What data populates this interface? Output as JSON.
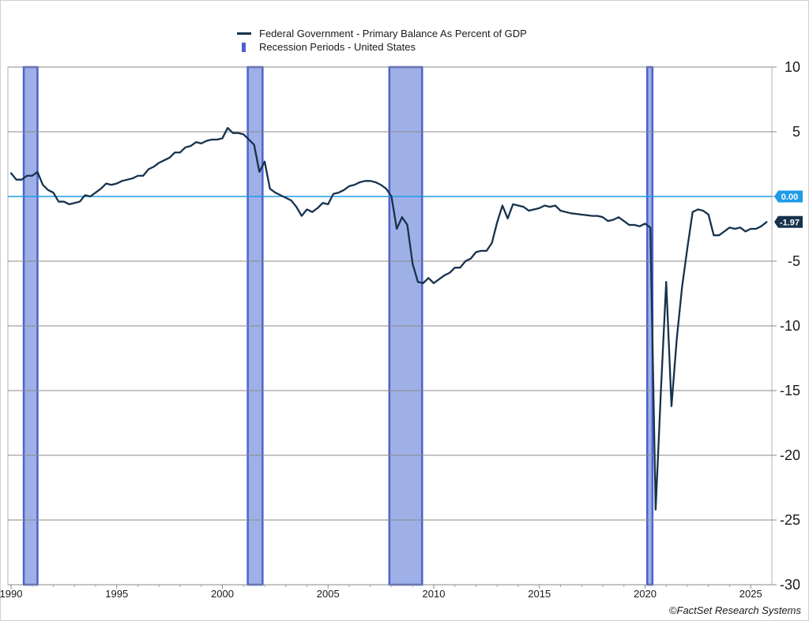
{
  "chart_data": {
    "type": "line",
    "title": "",
    "legend": [
      {
        "name": "Federal Government - Primary Balance As Percent of GDP",
        "kind": "line",
        "color": "#17324d"
      },
      {
        "name": "Recession Periods - United States",
        "kind": "bar",
        "color": "#4d62cf"
      }
    ],
    "ylim": [
      -30,
      10
    ],
    "xlim": [
      1989.85,
      2026.0
    ],
    "y_ticks": [
      "10",
      "5",
      "0",
      "-5",
      "-10",
      "-15",
      "-20",
      "-25",
      "-30"
    ],
    "y_tick_values": [
      10,
      5,
      0,
      -5,
      -10,
      -15,
      -20,
      -25,
      -30
    ],
    "x_ticks": [
      "1990",
      "1995",
      "2000",
      "2005",
      "2010",
      "2015",
      "2020",
      "2025"
    ],
    "x_tick_values": [
      1990,
      1995,
      2000,
      2005,
      2010,
      2015,
      2020,
      2025
    ],
    "grid": true,
    "zero_line": {
      "value": 0,
      "label": "0.00",
      "color": "#1f9be8"
    },
    "last_value": {
      "value": -1.97,
      "label": "-1.97",
      "color": "#17324d"
    },
    "recessions": [
      {
        "start": 1990.6,
        "end": 1991.25
      },
      {
        "start": 2001.2,
        "end": 2001.9
      },
      {
        "start": 2007.9,
        "end": 2009.45
      },
      {
        "start": 2020.1,
        "end": 2020.35
      }
    ],
    "series": [
      {
        "name": "Federal Government - Primary Balance As Percent of GDP",
        "x": [
          1990.0,
          1990.25,
          1990.5,
          1990.75,
          1991.0,
          1991.25,
          1991.5,
          1991.75,
          1992.0,
          1992.25,
          1992.5,
          1992.75,
          1993.0,
          1993.25,
          1993.5,
          1993.75,
          1994.0,
          1994.25,
          1994.5,
          1994.75,
          1995.0,
          1995.25,
          1995.5,
          1995.75,
          1996.0,
          1996.25,
          1996.5,
          1996.75,
          1997.0,
          1997.25,
          1997.5,
          1997.75,
          1998.0,
          1998.25,
          1998.5,
          1998.75,
          1999.0,
          1999.25,
          1999.5,
          1999.75,
          2000.0,
          2000.25,
          2000.5,
          2000.75,
          2001.0,
          2001.25,
          2001.5,
          2001.75,
          2002.0,
          2002.25,
          2002.5,
          2002.75,
          2003.0,
          2003.25,
          2003.5,
          2003.75,
          2004.0,
          2004.25,
          2004.5,
          2004.75,
          2005.0,
          2005.25,
          2005.5,
          2005.75,
          2006.0,
          2006.25,
          2006.5,
          2006.75,
          2007.0,
          2007.25,
          2007.5,
          2007.75,
          2008.0,
          2008.25,
          2008.5,
          2008.75,
          2009.0,
          2009.25,
          2009.5,
          2009.75,
          2010.0,
          2010.25,
          2010.5,
          2010.75,
          2011.0,
          2011.25,
          2011.5,
          2011.75,
          2012.0,
          2012.25,
          2012.5,
          2012.75,
          2013.0,
          2013.25,
          2013.5,
          2013.75,
          2014.0,
          2014.25,
          2014.5,
          2014.75,
          2015.0,
          2015.25,
          2015.5,
          2015.75,
          2016.0,
          2016.25,
          2016.5,
          2016.75,
          2017.0,
          2017.25,
          2017.5,
          2017.75,
          2018.0,
          2018.25,
          2018.5,
          2018.75,
          2019.0,
          2019.25,
          2019.5,
          2019.75,
          2020.0,
          2020.25,
          2020.5,
          2020.75,
          2021.0,
          2021.25,
          2021.5,
          2021.75,
          2022.0,
          2022.25,
          2022.5,
          2022.75,
          2023.0,
          2023.25,
          2023.5,
          2023.75,
          2024.0,
          2024.25,
          2024.5,
          2024.75,
          2025.0,
          2025.25,
          2025.5,
          2025.75
        ],
        "values": [
          1.8,
          1.3,
          1.3,
          1.6,
          1.6,
          1.9,
          0.9,
          0.5,
          0.3,
          -0.4,
          -0.4,
          -0.6,
          -0.5,
          -0.4,
          0.1,
          0.0,
          0.3,
          0.6,
          1.0,
          0.9,
          1.0,
          1.2,
          1.3,
          1.4,
          1.6,
          1.6,
          2.1,
          2.3,
          2.6,
          2.8,
          3.0,
          3.4,
          3.4,
          3.8,
          3.9,
          4.2,
          4.1,
          4.3,
          4.4,
          4.4,
          4.5,
          5.3,
          4.9,
          4.9,
          4.8,
          4.4,
          4.0,
          1.9,
          2.7,
          0.6,
          0.3,
          0.1,
          -0.1,
          -0.3,
          -0.8,
          -1.5,
          -1.0,
          -1.2,
          -0.9,
          -0.5,
          -0.6,
          0.2,
          0.3,
          0.5,
          0.8,
          0.9,
          1.1,
          1.2,
          1.2,
          1.1,
          0.9,
          0.6,
          0.0,
          -2.5,
          -1.6,
          -2.2,
          -5.2,
          -6.6,
          -6.7,
          -6.3,
          -6.7,
          -6.4,
          -6.1,
          -5.9,
          -5.5,
          -5.5,
          -5.0,
          -4.8,
          -4.3,
          -4.2,
          -4.2,
          -3.6,
          -2.0,
          -0.7,
          -1.7,
          -0.6,
          -0.7,
          -0.8,
          -1.1,
          -1.0,
          -0.9,
          -0.7,
          -0.8,
          -0.7,
          -1.1,
          -1.2,
          -1.3,
          -1.35,
          -1.4,
          -1.45,
          -1.5,
          -1.5,
          -1.6,
          -1.9,
          -1.8,
          -1.6,
          -1.9,
          -2.2,
          -2.2,
          -2.3,
          -2.1,
          -2.4,
          -24.2,
          -15.0,
          -6.6,
          -16.2,
          -11.0,
          -7.0,
          -4.0,
          -1.2,
          -1.0,
          -1.1,
          -1.4,
          -3.0,
          -3.0,
          -2.7,
          -2.4,
          -2.5,
          -2.4,
          -2.7,
          -2.5,
          -2.5,
          -2.3,
          -1.97
        ]
      }
    ]
  },
  "copyright": "©FactSet Research Systems"
}
